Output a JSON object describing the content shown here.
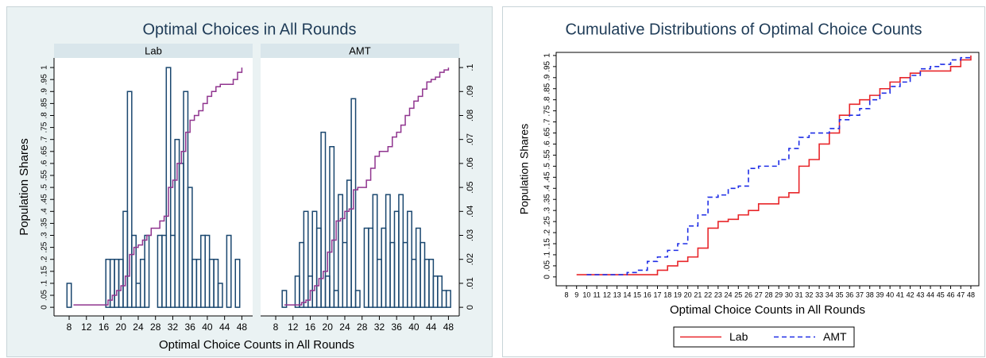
{
  "chart_data": [
    {
      "type": "histogram",
      "title": "Optimal Choices in All Rounds",
      "xlabel": "Optimal Choice Counts in All Rounds",
      "ylabel": "Population Shares",
      "bar_color": "#1a476f",
      "line_color": "#90358f",
      "xlim": [
        4.5,
        50.5
      ],
      "xticks": [
        8,
        12,
        16,
        20,
        24,
        28,
        32,
        36,
        40,
        44,
        48
      ],
      "ylim": [
        -0.036,
        1.04
      ],
      "yticks": [
        0,
        {
          "value": 0.05,
          "label": ".05"
        },
        {
          "value": 0.1,
          "label": ".1"
        },
        {
          "value": 0.15,
          "label": ".15"
        },
        {
          "value": 0.2,
          "label": ".2"
        },
        {
          "value": 0.25,
          "label": ".25"
        },
        {
          "value": 0.3,
          "label": ".3"
        },
        {
          "value": 0.35,
          "label": ".35"
        },
        {
          "value": 0.4,
          "label": ".4"
        },
        {
          "value": 0.45,
          "label": ".45"
        },
        {
          "value": 0.5,
          "label": ".5"
        },
        {
          "value": 0.55,
          "label": ".55"
        },
        {
          "value": 0.6,
          "label": ".6"
        },
        {
          "value": 0.65,
          "label": ".65"
        },
        {
          "value": 0.7,
          "label": ".7"
        },
        {
          "value": 0.75,
          "label": ".75"
        },
        {
          "value": 0.8,
          "label": ".8"
        },
        {
          "value": 0.85,
          "label": ".85"
        },
        {
          "value": 0.9,
          "label": ".9"
        },
        {
          "value": 0.95,
          "label": ".95"
        },
        1
      ],
      "y2lim": [
        -0.0036,
        0.104
      ],
      "y2ticks": [
        0,
        {
          "value": 0.01,
          "label": ".01"
        },
        {
          "value": 0.02,
          "label": ".02"
        },
        {
          "value": 0.03,
          "label": ".03"
        },
        {
          "value": 0.04,
          "label": ".04"
        },
        {
          "value": 0.05,
          "label": ".05"
        },
        {
          "value": 0.06,
          "label": ".06"
        },
        {
          "value": 0.07,
          "label": ".07"
        },
        {
          "value": 0.08,
          "label": ".08"
        },
        {
          "value": 0.09,
          "label": ".09"
        },
        {
          "value": 0.1,
          "label": ".1"
        }
      ],
      "panels": [
        {
          "label": "Lab",
          "bars": {
            "x": [
              8,
              17,
              18,
              19,
              20,
              21,
              22,
              23,
              24,
              25,
              26,
              29,
              30,
              31,
              32,
              33,
              34,
              35,
              36,
              37,
              38,
              39,
              40,
              41,
              42,
              43,
              45,
              47
            ],
            "values": [
              0.01,
              0.02,
              0.02,
              0.02,
              0.02,
              0.04,
              0.09,
              0.03,
              0.01,
              0.02,
              0.03,
              0.03,
              0.03,
              0.1,
              0.03,
              0.07,
              0.06,
              0.09,
              0.05,
              0.02,
              0.02,
              0.03,
              0.03,
              0.02,
              0.02,
              0.01,
              0.03,
              0.02
            ]
          },
          "cumulative": {
            "x": [
              9,
              10,
              11,
              12,
              13,
              14,
              15,
              16,
              17,
              18,
              19,
              20,
              21,
              22,
              23,
              24,
              25,
              26,
              27,
              28,
              29,
              30,
              31,
              32,
              33,
              34,
              35,
              36,
              37,
              38,
              39,
              40,
              41,
              42,
              43,
              44,
              45,
              46,
              47,
              48
            ],
            "values": [
              0.01,
              0.01,
              0.01,
              0.01,
              0.01,
              0.01,
              0.01,
              0.01,
              0.03,
              0.05,
              0.07,
              0.09,
              0.13,
              0.22,
              0.25,
              0.26,
              0.28,
              0.3,
              0.33,
              0.33,
              0.36,
              0.38,
              0.5,
              0.53,
              0.6,
              0.65,
              0.73,
              0.78,
              0.8,
              0.82,
              0.85,
              0.88,
              0.9,
              0.92,
              0.93,
              0.93,
              0.93,
              0.95,
              0.98,
              1
            ]
          }
        },
        {
          "label": "AMT",
          "bars": {
            "x": [
              10,
              13,
              14,
              15,
              16,
              17,
              18,
              19,
              20,
              21,
              22,
              23,
              24,
              25,
              26,
              27,
              29,
              30,
              31,
              32,
              33,
              34,
              35,
              36,
              37,
              38,
              39,
              40,
              41,
              42,
              43,
              44,
              45,
              46,
              47,
              48
            ],
            "values": [
              0.007,
              0.013,
              0.027,
              0.04,
              0.013,
              0.04,
              0.033,
              0.073,
              0.013,
              0.067,
              0.007,
              0.047,
              0.027,
              0.053,
              0.087,
              0.007,
              0.033,
              0.033,
              0.047,
              0.02,
              0.033,
              0.047,
              0.027,
              0.04,
              0.047,
              0.027,
              0.04,
              0.02,
              0.033,
              0.027,
              0.02,
              0.02,
              0.013,
              0.013,
              0.007,
              0.007
            ]
          },
          "cumulative": {
            "x": [
              10,
              11,
              12,
              13,
              14,
              15,
              16,
              17,
              18,
              19,
              20,
              21,
              22,
              23,
              24,
              25,
              26,
              27,
              28,
              29,
              30,
              31,
              32,
              33,
              34,
              35,
              36,
              37,
              38,
              39,
              40,
              41,
              42,
              43,
              44,
              45,
              46,
              47,
              48
            ],
            "values": [
              0.01,
              0.01,
              0.01,
              0.01,
              0.02,
              0.03,
              0.07,
              0.09,
              0.12,
              0.15,
              0.23,
              0.28,
              0.36,
              0.37,
              0.4,
              0.41,
              0.49,
              0.5,
              0.5,
              0.53,
              0.58,
              0.63,
              0.65,
              0.65,
              0.67,
              0.71,
              0.73,
              0.76,
              0.8,
              0.83,
              0.86,
              0.88,
              0.91,
              0.94,
              0.95,
              0.96,
              0.98,
              0.99,
              1
            ]
          }
        }
      ]
    },
    {
      "type": "line",
      "title": "Cumulative Distributions of Optimal Choice Counts",
      "xlabel": "Optimal Choice Counts in All Rounds",
      "ylabel": "Population Shares",
      "xlim": [
        6.98,
        48.79
      ],
      "xticks": [
        8,
        9,
        10,
        11,
        12,
        13,
        14,
        15,
        16,
        17,
        18,
        19,
        20,
        21,
        22,
        23,
        24,
        25,
        26,
        27,
        28,
        29,
        30,
        31,
        32,
        33,
        34,
        35,
        36,
        37,
        38,
        39,
        40,
        41,
        42,
        43,
        44,
        45,
        46,
        47,
        48
      ],
      "ylim": [
        -0.04,
        1.014
      ],
      "yticks": [
        0,
        {
          "value": 0.05,
          "label": ".05"
        },
        {
          "value": 0.1,
          "label": ".1"
        },
        {
          "value": 0.15,
          "label": ".15"
        },
        {
          "value": 0.2,
          "label": ".2"
        },
        {
          "value": 0.25,
          "label": ".25"
        },
        {
          "value": 0.3,
          "label": ".3"
        },
        {
          "value": 0.35,
          "label": ".35"
        },
        {
          "value": 0.4,
          "label": ".4"
        },
        {
          "value": 0.45,
          "label": ".45"
        },
        {
          "value": 0.5,
          "label": ".5"
        },
        {
          "value": 0.55,
          "label": ".55"
        },
        {
          "value": 0.6,
          "label": ".6"
        },
        {
          "value": 0.65,
          "label": ".65"
        },
        {
          "value": 0.7,
          "label": ".7"
        },
        {
          "value": 0.75,
          "label": ".75"
        },
        {
          "value": 0.8,
          "label": ".8"
        },
        {
          "value": 0.85,
          "label": ".85"
        },
        {
          "value": 0.9,
          "label": ".9"
        },
        {
          "value": 0.95,
          "label": ".95"
        },
        1
      ],
      "legend": "bottom",
      "series": [
        {
          "name": "Lab",
          "color": "#e8262a",
          "dashed": false,
          "x": [
            9,
            10,
            11,
            12,
            13,
            14,
            15,
            16,
            17,
            18,
            19,
            20,
            21,
            22,
            23,
            24,
            25,
            26,
            27,
            28,
            29,
            30,
            31,
            32,
            33,
            34,
            35,
            36,
            37,
            38,
            39,
            40,
            41,
            42,
            43,
            44,
            45,
            46,
            47,
            48
          ],
          "values": [
            0.01,
            0.01,
            0.01,
            0.01,
            0.01,
            0.01,
            0.01,
            0.01,
            0.03,
            0.05,
            0.07,
            0.09,
            0.13,
            0.22,
            0.25,
            0.26,
            0.28,
            0.3,
            0.33,
            0.33,
            0.36,
            0.38,
            0.5,
            0.53,
            0.6,
            0.65,
            0.73,
            0.78,
            0.8,
            0.82,
            0.85,
            0.88,
            0.9,
            0.92,
            0.93,
            0.93,
            0.93,
            0.95,
            0.98,
            1
          ]
        },
        {
          "name": "AMT",
          "color": "#1f2ee6",
          "dashed": true,
          "x": [
            10,
            11,
            12,
            13,
            14,
            15,
            16,
            17,
            18,
            19,
            20,
            21,
            22,
            23,
            24,
            25,
            26,
            27,
            28,
            29,
            30,
            31,
            32,
            33,
            34,
            35,
            36,
            37,
            38,
            39,
            40,
            41,
            42,
            43,
            44,
            45,
            46,
            47,
            48
          ],
          "values": [
            0.01,
            0.01,
            0.01,
            0.01,
            0.02,
            0.03,
            0.07,
            0.09,
            0.12,
            0.15,
            0.23,
            0.28,
            0.36,
            0.37,
            0.4,
            0.41,
            0.49,
            0.5,
            0.5,
            0.53,
            0.58,
            0.63,
            0.65,
            0.65,
            0.67,
            0.71,
            0.73,
            0.76,
            0.8,
            0.83,
            0.86,
            0.88,
            0.91,
            0.94,
            0.95,
            0.96,
            0.98,
            0.99,
            1
          ]
        }
      ]
    }
  ]
}
